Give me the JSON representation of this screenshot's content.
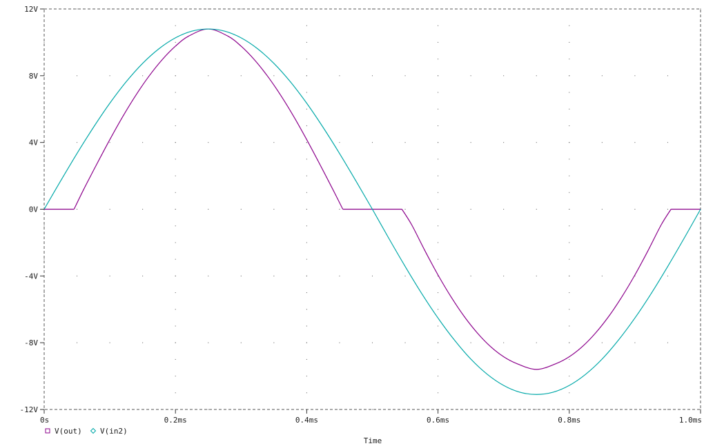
{
  "chart_data": {
    "type": "line",
    "title": "",
    "xlabel": "Time",
    "ylabel": "",
    "xlim": [
      0,
      1.0
    ],
    "ylim": [
      -12,
      12
    ],
    "x_ticks": [
      0,
      0.2,
      0.4,
      0.6,
      0.8,
      1.0
    ],
    "x_tick_labels": [
      "0s",
      "0.2ms",
      "0.4ms",
      "0.6ms",
      "0.8ms",
      "1.0ms"
    ],
    "y_ticks": [
      12,
      8,
      4,
      0,
      -4,
      -8,
      -12
    ],
    "y_tick_labels": [
      "12V",
      "8V",
      "4V",
      "0V",
      "-4V",
      "-8V",
      "-12V"
    ],
    "x_unit": "ms",
    "grid": "dotted",
    "legend_position": "bottom-left",
    "series": [
      {
        "name": "V(out)",
        "color": "#8b008b",
        "marker": "square",
        "x": [
          0,
          0.045,
          0.0455,
          0.06,
          0.08,
          0.1,
          0.12,
          0.14,
          0.16,
          0.18,
          0.2,
          0.22,
          0.25,
          0.28,
          0.3,
          0.32,
          0.34,
          0.36,
          0.38,
          0.4,
          0.42,
          0.44,
          0.455,
          0.545,
          0.56,
          0.58,
          0.6,
          0.62,
          0.64,
          0.66,
          0.68,
          0.7,
          0.72,
          0.75,
          0.78,
          0.8,
          0.82,
          0.84,
          0.86,
          0.88,
          0.9,
          0.92,
          0.94,
          0.955,
          1.0
        ],
        "values": [
          0,
          0,
          0,
          1.17,
          2.69,
          4.17,
          5.57,
          6.85,
          7.99,
          8.97,
          9.77,
          10.37,
          10.8,
          10.37,
          9.77,
          8.97,
          7.99,
          6.85,
          5.57,
          4.17,
          2.69,
          1.17,
          0,
          0,
          -0.94,
          -2.48,
          -3.94,
          -5.26,
          -6.43,
          -7.42,
          -8.23,
          -8.84,
          -9.25,
          -9.6,
          -9.25,
          -8.84,
          -8.23,
          -7.42,
          -6.43,
          -5.26,
          -3.94,
          -2.48,
          -0.94,
          0,
          0
        ]
      },
      {
        "name": "V(in2)",
        "color": "#00a8a8",
        "marker": "diamond",
        "x": [
          0,
          0.025,
          0.05,
          0.075,
          0.1,
          0.125,
          0.15,
          0.175,
          0.2,
          0.225,
          0.25,
          0.275,
          0.3,
          0.325,
          0.35,
          0.375,
          0.4,
          0.425,
          0.45,
          0.475,
          0.5,
          0.525,
          0.55,
          0.575,
          0.6,
          0.625,
          0.65,
          0.675,
          0.7,
          0.725,
          0.75,
          0.775,
          0.8,
          0.825,
          0.85,
          0.875,
          0.9,
          0.925,
          0.95,
          0.975,
          1.0
        ],
        "values": [
          0,
          1.69,
          3.34,
          4.9,
          6.35,
          7.64,
          8.74,
          9.62,
          10.27,
          10.67,
          10.8,
          10.67,
          10.27,
          9.62,
          8.74,
          7.64,
          6.35,
          4.9,
          3.34,
          1.69,
          0,
          -1.74,
          -3.43,
          -5.04,
          -6.52,
          -7.84,
          -8.98,
          -9.89,
          -10.56,
          -10.97,
          -11.1,
          -10.97,
          -10.56,
          -9.89,
          -8.98,
          -7.84,
          -6.52,
          -5.04,
          -3.43,
          -1.74,
          0
        ]
      }
    ]
  },
  "legend": {
    "items": [
      {
        "label": "V(out)",
        "color": "#8b008b",
        "marker": "square"
      },
      {
        "label": "V(in2)",
        "color": "#00a8a8",
        "marker": "diamond"
      }
    ]
  }
}
